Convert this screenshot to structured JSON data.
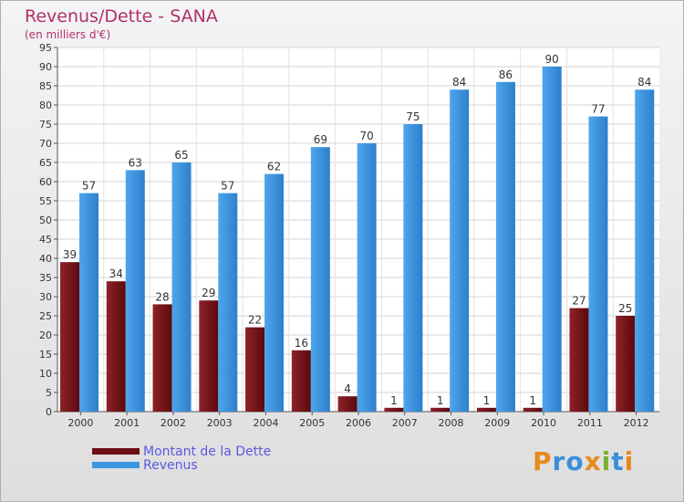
{
  "header": {
    "title": "Revenus/Dette - SANA",
    "subtitle": "(en milliers d'€)"
  },
  "colors": {
    "debt": "#6b0f12",
    "revenue": "#3d96e0",
    "title": "#b0306a",
    "legend_text": "#5a5ae0"
  },
  "logo": {
    "text": "Proxiti",
    "letters": [
      "P",
      "r",
      "o",
      "x",
      "i",
      "t",
      "i"
    ],
    "colors": [
      "#e8891e",
      "#3a8fd8",
      "#3a8fd8",
      "#e8891e",
      "#78b030",
      "#3a8fd8",
      "#e8891e"
    ]
  },
  "chart_data": {
    "type": "bar",
    "title": "Revenus/Dette - SANA",
    "subtitle": "(en milliers d'€)",
    "categories": [
      "2000",
      "2001",
      "2002",
      "2003",
      "2004",
      "2005",
      "2006",
      "2007",
      "2008",
      "2009",
      "2010",
      "2011",
      "2012"
    ],
    "series": [
      {
        "name": "Montant de la Dette",
        "values": [
          39,
          34,
          28,
          29,
          22,
          16,
          4,
          1,
          1,
          1,
          1,
          27,
          25
        ]
      },
      {
        "name": "Revenus",
        "values": [
          57,
          63,
          65,
          57,
          62,
          69,
          70,
          75,
          84,
          86,
          90,
          77,
          84
        ]
      }
    ],
    "yticks": [
      "0",
      "5",
      "10",
      "15",
      "20",
      "25",
      "30",
      "35",
      "40",
      "45",
      "50",
      "55",
      "60",
      "65",
      "70",
      "75",
      "80",
      "85",
      "90",
      "95"
    ],
    "ylim": [
      0,
      95
    ],
    "grid": true,
    "legend_position": "bottom-left"
  }
}
